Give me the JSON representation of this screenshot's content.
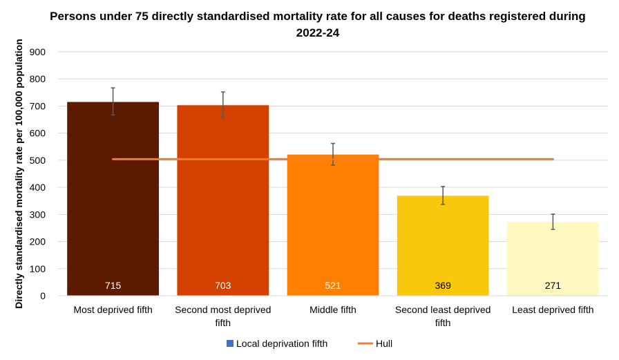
{
  "chart_data": {
    "type": "bar",
    "title": "Persons under 75 directly standardised mortality rate for all causes for deaths registered during 2022-24",
    "xlabel": "",
    "ylabel": "Directly standardised mortality rate per 100,000 population",
    "ylim": [
      0,
      900
    ],
    "yticks": [
      0,
      100,
      200,
      300,
      400,
      500,
      600,
      700,
      800,
      900
    ],
    "grid": true,
    "legend_position": "bottom",
    "categories": [
      "Most deprived fifth",
      "Second most deprived fifth",
      "Middle fifth",
      "Second least deprived fifth",
      "Least deprived fifth"
    ],
    "category_lines": [
      [
        "Most deprived fifth"
      ],
      [
        "Second most deprived",
        "fifth"
      ],
      [
        "Middle fifth"
      ],
      [
        "Second least deprived",
        "fifth"
      ],
      [
        "Least deprived fifth"
      ]
    ],
    "series": [
      {
        "name": "Local deprivation fifth",
        "type": "bar",
        "values": [
          715,
          703,
          521,
          369,
          271
        ],
        "data_labels": [
          "715",
          "703",
          "521",
          "369",
          "271"
        ],
        "error_low": [
          667,
          658,
          482,
          337,
          245
        ],
        "error_high": [
          767,
          752,
          562,
          403,
          301
        ],
        "colors": [
          "#5c1a00",
          "#d44000",
          "#ff8000",
          "#f9c80c",
          "#fff8c0"
        ],
        "legend_color": "#4472c4"
      },
      {
        "name": "Hull",
        "type": "line",
        "value": 504,
        "color": "#ed7d31"
      }
    ]
  }
}
